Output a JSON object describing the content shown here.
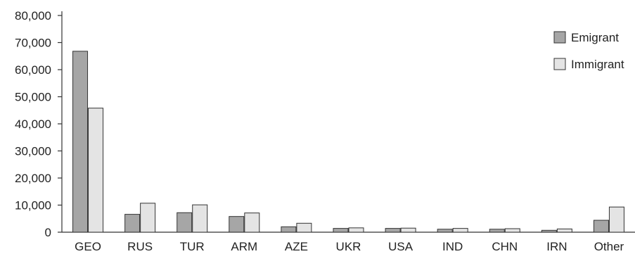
{
  "chart_data": {
    "type": "bar",
    "title": "",
    "xlabel": "",
    "ylabel": "",
    "ylim": [
      0,
      80000
    ],
    "yticks": [
      "0",
      "10,000",
      "20,000",
      "30,000",
      "40,000",
      "50,000",
      "60,000",
      "70,000",
      "80,000"
    ],
    "categories": [
      "GEO",
      "RUS",
      "TUR",
      "ARM",
      "AZE",
      "UKR",
      "USA",
      "IND",
      "CHN",
      "IRN",
      "Other"
    ],
    "series": [
      {
        "name": "Emigrant",
        "color": "#a6a6a6",
        "values": [
          66800,
          6600,
          7200,
          5800,
          2000,
          1400,
          1400,
          1100,
          1100,
          700,
          4400
        ]
      },
      {
        "name": "Immigrant",
        "color": "#e4e4e4",
        "values": [
          45800,
          10700,
          10100,
          7100,
          3300,
          1600,
          1500,
          1400,
          1300,
          1200,
          9300
        ]
      }
    ],
    "grid": false,
    "legend_position": "top-right"
  }
}
